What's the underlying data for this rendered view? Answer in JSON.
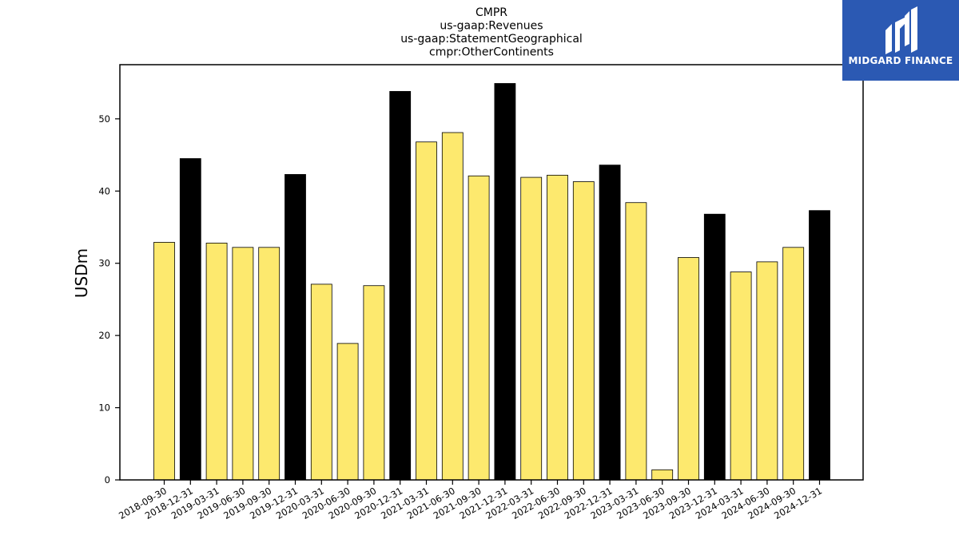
{
  "logo": {
    "text": "MIDGARD FINANCE",
    "background": "#2b59b3",
    "icon": "midgard-finance-logo-icon"
  },
  "chart_data": {
    "type": "bar",
    "title_lines": [
      "CMPR",
      "us-gaap:Revenues",
      "us-gaap:StatementGeographical",
      "cmpr:OtherContinents"
    ],
    "xlabel": "",
    "ylabel": "USDm",
    "ylim": [
      0,
      57.5
    ],
    "yticks": [
      0,
      10,
      20,
      30,
      40,
      50
    ],
    "grid": false,
    "colors": {
      "quarter": "#fde96e",
      "year_end": "#000000",
      "edge": "#000000"
    },
    "categories": [
      "2018-09-30",
      "2018-12-31",
      "2019-03-31",
      "2019-06-30",
      "2019-09-30",
      "2019-12-31",
      "2020-03-31",
      "2020-06-30",
      "2020-09-30",
      "2020-12-31",
      "2021-03-31",
      "2021-06-30",
      "2021-09-30",
      "2021-12-31",
      "2022-03-31",
      "2022-06-30",
      "2022-09-30",
      "2022-12-31",
      "2023-03-31",
      "2023-06-30",
      "2023-09-30",
      "2023-12-31",
      "2024-03-31",
      "2024-06-30",
      "2024-09-30",
      "2024-12-31"
    ],
    "values": [
      32.9,
      44.5,
      32.8,
      32.2,
      32.2,
      42.3,
      27.1,
      18.9,
      26.9,
      53.8,
      46.8,
      48.1,
      42.1,
      54.9,
      41.9,
      42.2,
      41.3,
      43.6,
      38.4,
      1.4,
      30.8,
      36.8,
      28.8,
      30.2,
      32.2,
      37.3
    ],
    "highlight": [
      false,
      true,
      false,
      false,
      false,
      true,
      false,
      false,
      false,
      true,
      false,
      false,
      false,
      true,
      false,
      false,
      false,
      true,
      false,
      false,
      false,
      true,
      false,
      false,
      false,
      true
    ]
  }
}
